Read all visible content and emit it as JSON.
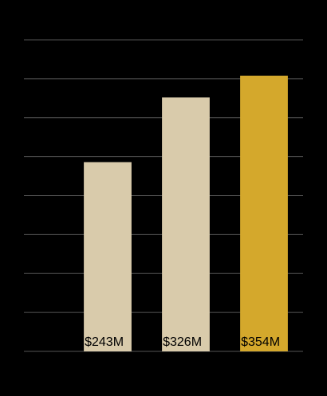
{
  "chart_data": {
    "type": "bar",
    "categories": [
      null,
      null,
      null
    ],
    "values": [
      243,
      326,
      354
    ],
    "value_labels": [
      "$243M",
      "$326M",
      "$354M"
    ],
    "colors": [
      "#d9cbab",
      "#d9cbab",
      "#d4a82c"
    ],
    "ylim": [
      0,
      400
    ],
    "yticks": [
      0,
      50,
      100,
      150,
      200,
      250,
      300,
      350,
      400
    ],
    "grid": true
  }
}
